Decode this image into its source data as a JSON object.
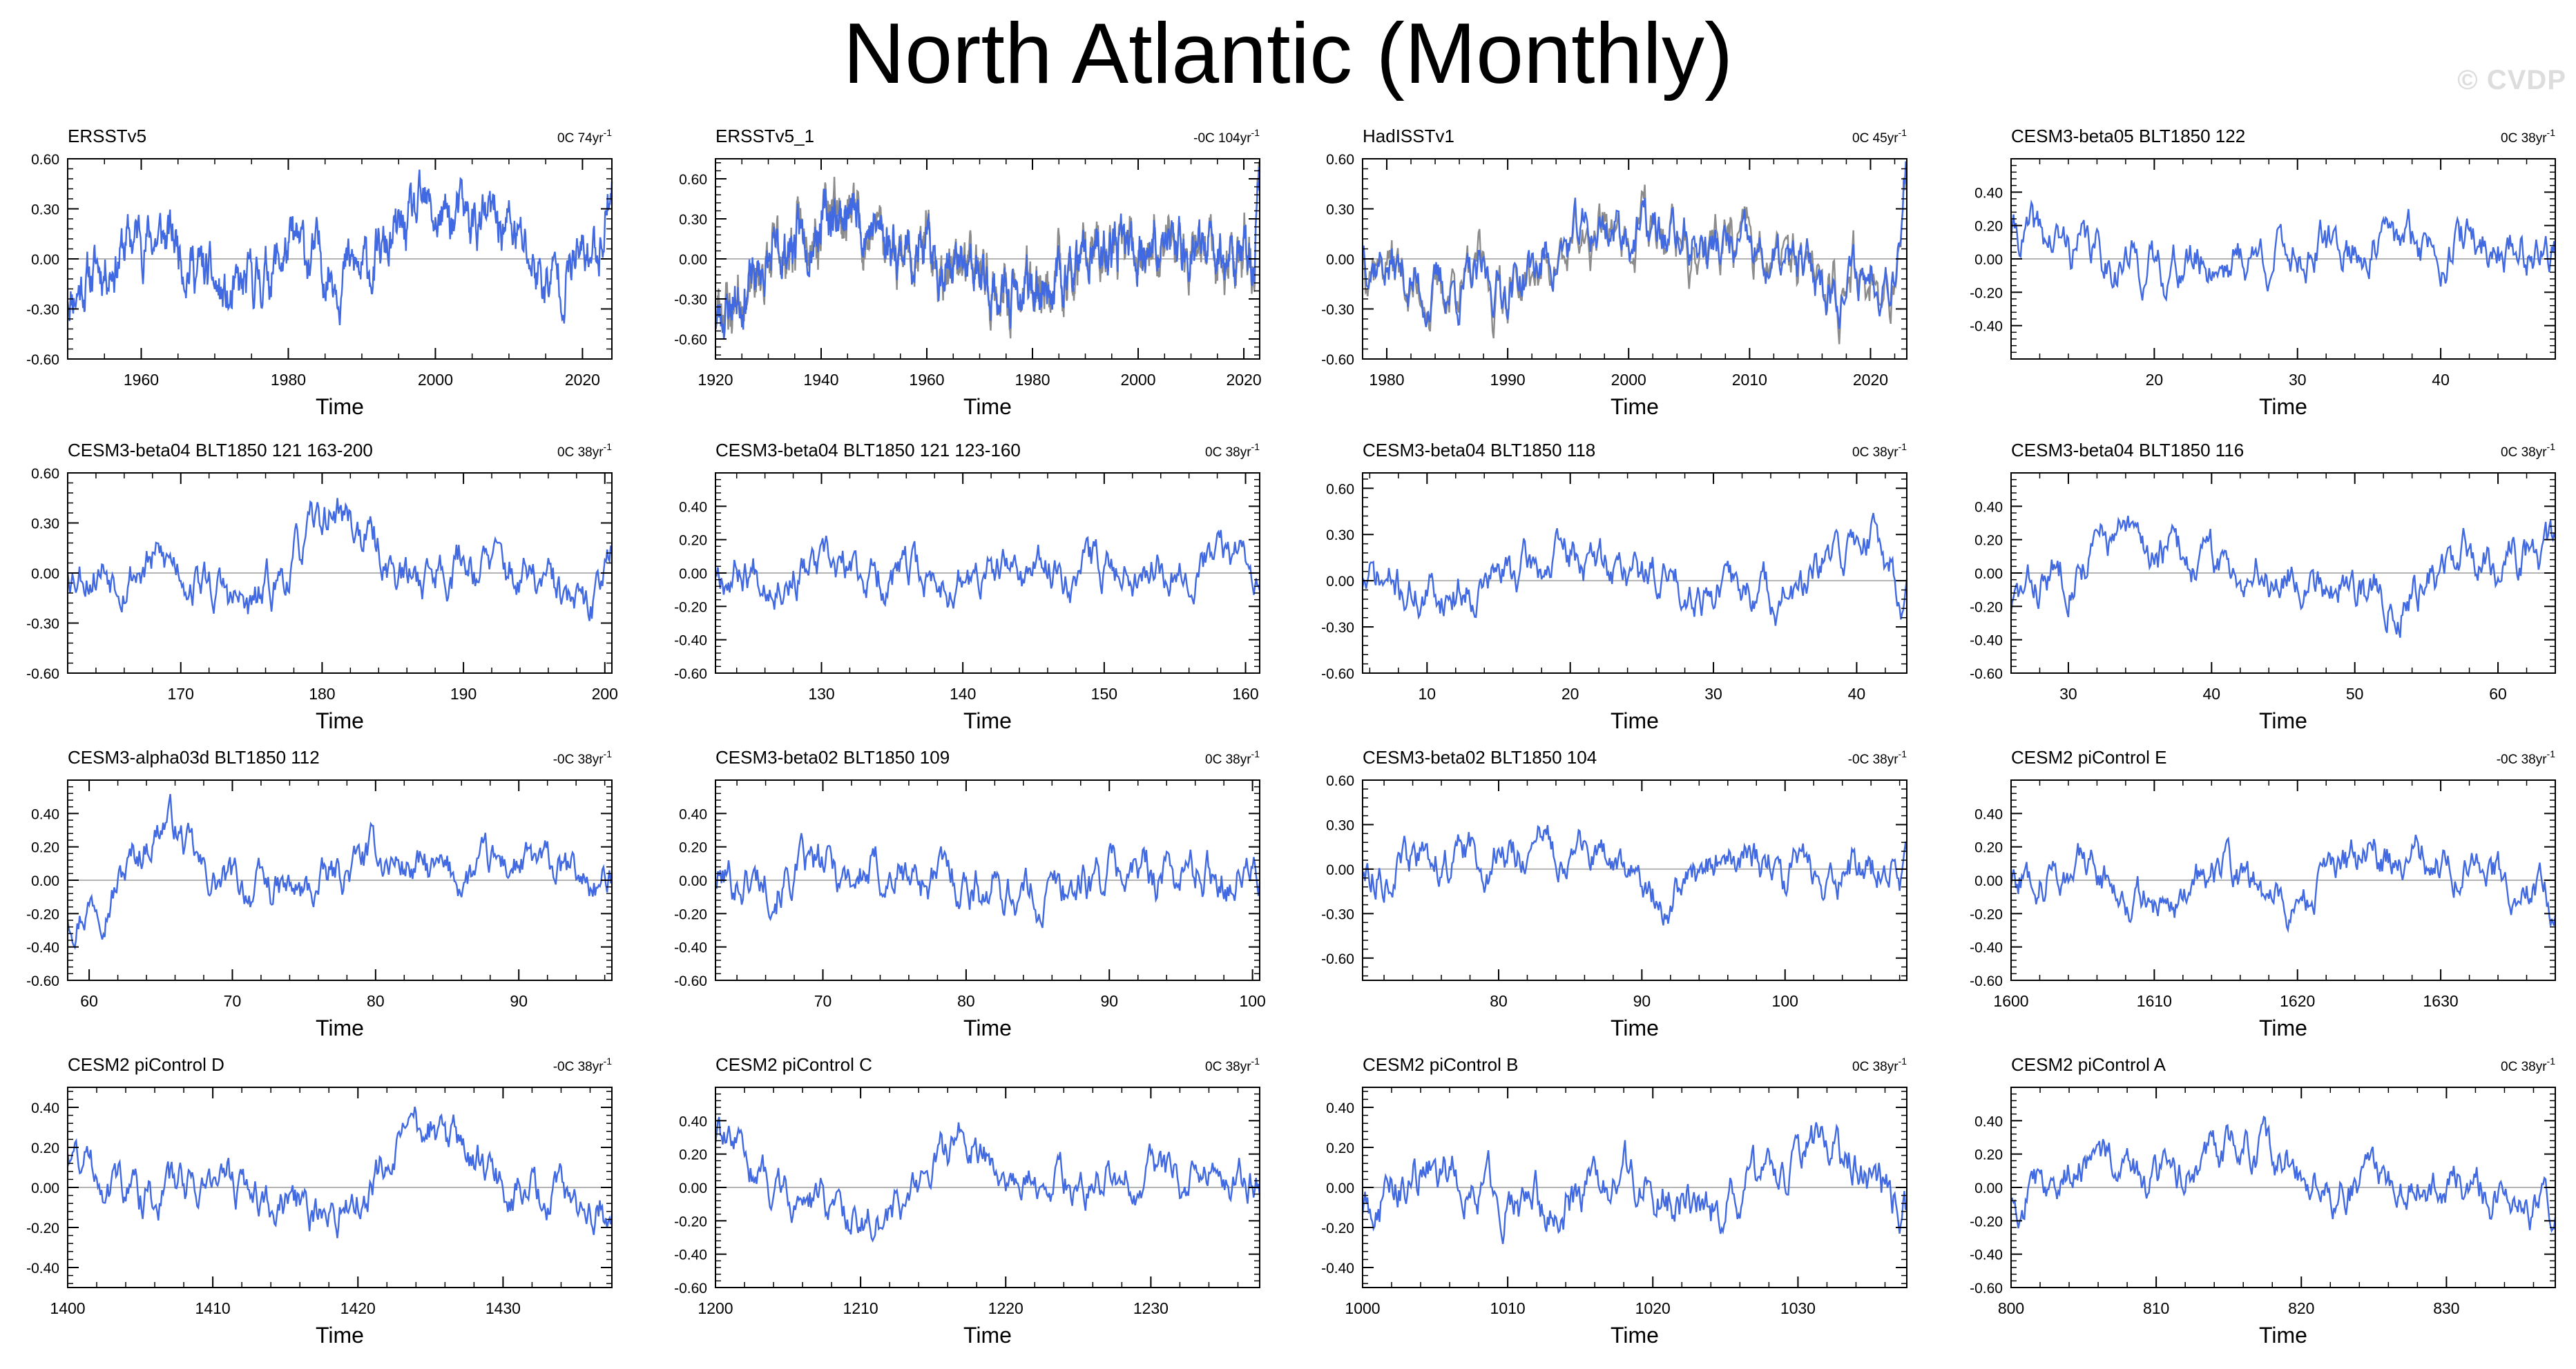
{
  "figure": {
    "title": "North Atlantic (Monthly)",
    "watermark": "© CVDP",
    "colors": {
      "line": "#4169e1",
      "obs_overlay": "#8c8c8c",
      "zero_line": "#b4b4b4"
    }
  },
  "chart_data": [
    {
      "type": "line",
      "title": "ERSSTv5",
      "trend": "0C 74yr",
      "trend_unit_exp": "-1",
      "xlabel": "Time",
      "ylabel": "",
      "xlim": [
        1950,
        2024
      ],
      "xticks": [
        1960,
        1980,
        2000,
        2020
      ],
      "ylim": [
        -0.6,
        0.6
      ],
      "yticks": [
        -0.6,
        -0.3,
        0.0,
        0.3,
        0.6
      ],
      "ytick_labels": [
        "-0.60",
        "-0.30",
        "0.00",
        "0.30",
        "0.60"
      ],
      "overlay": false,
      "seed": 11,
      "amp": 0.16,
      "key_points": [
        [
          1950,
          -0.2
        ],
        [
          1960,
          0.15
        ],
        [
          1965,
          0.1
        ],
        [
          1972,
          -0.3
        ],
        [
          1980,
          0.05
        ],
        [
          1990,
          -0.1
        ],
        [
          1998,
          0.25
        ],
        [
          2010,
          0.2
        ],
        [
          2015,
          -0.15
        ],
        [
          2022,
          0.05
        ],
        [
          2024,
          0.5
        ]
      ]
    },
    {
      "type": "line",
      "title": "ERSSTv5_1",
      "trend": "-0C 104yr",
      "trend_unit_exp": "-1",
      "xlabel": "Time",
      "ylabel": "",
      "xlim": [
        1920,
        2023
      ],
      "xticks": [
        1920,
        1940,
        1960,
        1980,
        2000,
        2020
      ],
      "ylim": [
        -0.75,
        0.75
      ],
      "yticks": [
        -0.6,
        -0.3,
        0.0,
        0.3,
        0.6
      ],
      "ytick_labels": [
        "-0.60",
        "-0.30",
        "0.00",
        "0.30",
        "0.60"
      ],
      "overlay": true,
      "seed": 23,
      "amp": 0.17,
      "key_points": [
        [
          1920,
          -0.45
        ],
        [
          1930,
          -0.05
        ],
        [
          1940,
          0.3
        ],
        [
          1945,
          0.35
        ],
        [
          1955,
          0.1
        ],
        [
          1965,
          -0.05
        ],
        [
          1975,
          -0.3
        ],
        [
          1985,
          -0.15
        ],
        [
          1995,
          0.05
        ],
        [
          2005,
          0.1
        ],
        [
          2015,
          0.05
        ],
        [
          2022,
          0.0
        ],
        [
          2023,
          0.75
        ]
      ]
    },
    {
      "type": "line",
      "title": "HadISSTv1",
      "trend": "0C 45yr",
      "trend_unit_exp": "-1",
      "xlabel": "Time",
      "ylabel": "",
      "xlim": [
        1978,
        2023
      ],
      "xticks": [
        1980,
        1990,
        2000,
        2010,
        2020
      ],
      "ylim": [
        -0.6,
        0.6
      ],
      "yticks": [
        -0.6,
        -0.3,
        0.0,
        0.3,
        0.6
      ],
      "ytick_labels": [
        "-0.60",
        "-0.30",
        "0.00",
        "0.30",
        "0.60"
      ],
      "overlay": true,
      "seed": 37,
      "amp": 0.16,
      "key_points": [
        [
          1978,
          0.1
        ],
        [
          1983,
          -0.2
        ],
        [
          1990,
          -0.15
        ],
        [
          1998,
          0.2
        ],
        [
          2005,
          0.1
        ],
        [
          2012,
          -0.05
        ],
        [
          2018,
          -0.15
        ],
        [
          2022,
          0.0
        ],
        [
          2023,
          0.7
        ]
      ]
    },
    {
      "type": "line",
      "title": "CESM3-beta05 BLT1850 122",
      "trend": "0C 38yr",
      "trend_unit_exp": "-1",
      "xlabel": "Time",
      "ylabel": "",
      "xlim": [
        10,
        48
      ],
      "xticks": [
        20,
        30,
        40
      ],
      "ylim": [
        -0.6,
        0.6
      ],
      "yticks": [
        -0.4,
        -0.2,
        0.0,
        0.2,
        0.4
      ],
      "ytick_labels": [
        "-0.40",
        "-0.20",
        "0.00",
        "0.20",
        "0.40"
      ],
      "overlay": false,
      "seed": 41,
      "amp": 0.14,
      "key_points": [
        [
          10,
          0.15
        ],
        [
          20,
          -0.05
        ],
        [
          30,
          0.05
        ],
        [
          40,
          0.1
        ],
        [
          48,
          0.05
        ]
      ]
    },
    {
      "type": "line",
      "title": "CESM3-beta04 BLT1850 121 163-200",
      "trend": "0C 38yr",
      "trend_unit_exp": "-1",
      "xlabel": "Time",
      "ylabel": "",
      "xlim": [
        162,
        200.5
      ],
      "xticks": [
        170,
        180,
        190,
        200
      ],
      "ylim": [
        -0.6,
        0.6
      ],
      "yticks": [
        -0.6,
        -0.3,
        0.0,
        0.3,
        0.6
      ],
      "ytick_labels": [
        "-0.60",
        "-0.30",
        "0.00",
        "0.30",
        "0.60"
      ],
      "overlay": false,
      "seed": 53,
      "amp": 0.14,
      "key_points": [
        [
          162,
          0.05
        ],
        [
          170,
          0.05
        ],
        [
          175,
          -0.25
        ],
        [
          181,
          0.4
        ],
        [
          186,
          -0.05
        ],
        [
          190,
          0.1
        ],
        [
          196,
          -0.1
        ],
        [
          199,
          -0.3
        ],
        [
          200.5,
          0.3
        ]
      ]
    },
    {
      "type": "line",
      "title": "CESM3-beta04 BLT1850 121 123-160",
      "trend": "0C 38yr",
      "trend_unit_exp": "-1",
      "xlabel": "Time",
      "ylabel": "",
      "xlim": [
        122.5,
        161
      ],
      "xticks": [
        130,
        140,
        150,
        160
      ],
      "ylim": [
        -0.6,
        0.6
      ],
      "yticks": [
        -0.6,
        -0.4,
        -0.2,
        0.0,
        0.2,
        0.4
      ],
      "ytick_labels": [
        "-0.60",
        "-0.40",
        "-0.20",
        "0.00",
        "0.20",
        "0.40"
      ],
      "overlay": false,
      "seed": 67,
      "amp": 0.13,
      "key_points": [
        [
          122.5,
          0.05
        ],
        [
          130,
          0.0
        ],
        [
          140,
          -0.05
        ],
        [
          150,
          0.05
        ],
        [
          161,
          0.1
        ]
      ]
    },
    {
      "type": "line",
      "title": "CESM3-beta04 BLT1850 118",
      "trend": "0C 38yr",
      "trend_unit_exp": "-1",
      "xlabel": "Time",
      "ylabel": "",
      "xlim": [
        5.5,
        43.5
      ],
      "xticks": [
        10,
        20,
        30,
        40
      ],
      "ylim": [
        -0.6,
        0.7
      ],
      "yticks": [
        -0.6,
        -0.3,
        0.0,
        0.3,
        0.6
      ],
      "ytick_labels": [
        "-0.60",
        "-0.30",
        "0.00",
        "0.30",
        "0.60"
      ],
      "overlay": false,
      "seed": 71,
      "amp": 0.14,
      "key_points": [
        [
          5.5,
          0.0
        ],
        [
          10,
          -0.1
        ],
        [
          20,
          0.15
        ],
        [
          30,
          -0.05
        ],
        [
          36,
          -0.1
        ],
        [
          41,
          0.35
        ],
        [
          43.5,
          -0.1
        ]
      ]
    },
    {
      "type": "line",
      "title": "CESM3-beta04 BLT1850 116",
      "trend": "0C 38yr",
      "trend_unit_exp": "-1",
      "xlabel": "Time",
      "ylabel": "",
      "xlim": [
        26,
        64
      ],
      "xticks": [
        30,
        40,
        50,
        60
      ],
      "ylim": [
        -0.6,
        0.6
      ],
      "yticks": [
        -0.6,
        -0.4,
        -0.2,
        0.0,
        0.2,
        0.4
      ],
      "ytick_labels": [
        "-0.60",
        "-0.40",
        "-0.20",
        "0.00",
        "0.20",
        "0.40"
      ],
      "overlay": false,
      "seed": 83,
      "amp": 0.13,
      "key_points": [
        [
          26,
          -0.2
        ],
        [
          30,
          0.05
        ],
        [
          33,
          0.2
        ],
        [
          40,
          0.05
        ],
        [
          47,
          0.0
        ],
        [
          53,
          -0.15
        ],
        [
          58,
          0.1
        ],
        [
          64,
          0.1
        ]
      ]
    },
    {
      "type": "line",
      "title": "CESM3-alpha03d BLT1850 112",
      "trend": "-0C 38yr",
      "trend_unit_exp": "-1",
      "xlabel": "Time",
      "ylabel": "",
      "xlim": [
        58.5,
        96.5
      ],
      "xticks": [
        60,
        70,
        80,
        90
      ],
      "ylim": [
        -0.6,
        0.6
      ],
      "yticks": [
        -0.6,
        -0.4,
        -0.2,
        0.0,
        0.2,
        0.4
      ],
      "ytick_labels": [
        "-0.60",
        "-0.40",
        "-0.20",
        "0.00",
        "0.20",
        "0.40"
      ],
      "overlay": false,
      "seed": 97,
      "amp": 0.12,
      "key_points": [
        [
          58.5,
          -0.2
        ],
        [
          62,
          0.0
        ],
        [
          65.5,
          0.4
        ],
        [
          68,
          0.0
        ],
        [
          75,
          -0.1
        ],
        [
          80,
          0.15
        ],
        [
          85,
          0.0
        ],
        [
          90,
          0.1
        ],
        [
          96.5,
          -0.05
        ]
      ]
    },
    {
      "type": "line",
      "title": "CESM3-beta02 BLT1850 109",
      "trend": "0C 38yr",
      "trend_unit_exp": "-1",
      "xlabel": "Time",
      "ylabel": "",
      "xlim": [
        62.5,
        100.5
      ],
      "xticks": [
        70,
        80,
        90,
        100
      ],
      "ylim": [
        -0.6,
        0.6
      ],
      "yticks": [
        -0.6,
        -0.4,
        -0.2,
        0.0,
        0.2,
        0.4
      ],
      "ytick_labels": [
        "-0.60",
        "-0.40",
        "-0.20",
        "0.00",
        "0.20",
        "0.40"
      ],
      "overlay": false,
      "seed": 101,
      "amp": 0.14,
      "key_points": [
        [
          62.5,
          0.0
        ],
        [
          70,
          0.05
        ],
        [
          80,
          0.0
        ],
        [
          85,
          -0.1
        ],
        [
          90,
          0.05
        ],
        [
          100.5,
          0.05
        ]
      ]
    },
    {
      "type": "line",
      "title": "CESM3-beta02 BLT1850 104",
      "trend": "-0C 38yr",
      "trend_unit_exp": "-1",
      "xlabel": "Time",
      "ylabel": "",
      "xlim": [
        70.5,
        108.5
      ],
      "xticks": [
        80,
        90,
        100
      ],
      "ylim": [
        -0.75,
        0.6
      ],
      "yticks": [
        -0.6,
        -0.3,
        0.0,
        0.3,
        0.6
      ],
      "ytick_labels": [
        "-0.60",
        "-0.30",
        "0.00",
        "0.30",
        "0.60"
      ],
      "overlay": false,
      "seed": 113,
      "amp": 0.14,
      "key_points": [
        [
          70.5,
          0.0
        ],
        [
          80,
          0.1
        ],
        [
          85,
          0.15
        ],
        [
          92,
          -0.2
        ],
        [
          96,
          0.1
        ],
        [
          100,
          -0.05
        ],
        [
          108.5,
          0.0
        ]
      ]
    },
    {
      "type": "line",
      "title": "CESM2 piControl E",
      "trend": "-0C 38yr",
      "trend_unit_exp": "-1",
      "xlabel": "Time",
      "ylabel": "",
      "xlim": [
        1600,
        1638
      ],
      "xticks": [
        1600,
        1610,
        1620,
        1630
      ],
      "ylim": [
        -0.6,
        0.6
      ],
      "yticks": [
        -0.6,
        -0.4,
        -0.2,
        0.0,
        0.2,
        0.4
      ],
      "ytick_labels": [
        "-0.60",
        "-0.40",
        "-0.20",
        "0.00",
        "0.20",
        "0.40"
      ],
      "overlay": false,
      "seed": 127,
      "amp": 0.12,
      "key_points": [
        [
          1600,
          0.0
        ],
        [
          1605,
          0.1
        ],
        [
          1610,
          -0.15
        ],
        [
          1615,
          0.05
        ],
        [
          1620,
          -0.15
        ],
        [
          1625,
          0.15
        ],
        [
          1632,
          0.1
        ],
        [
          1638,
          -0.15
        ]
      ]
    },
    {
      "type": "line",
      "title": "CESM2 piControl D",
      "trend": "-0C 38yr",
      "trend_unit_exp": "-1",
      "xlabel": "Time",
      "ylabel": "",
      "xlim": [
        1400,
        1437.5
      ],
      "xticks": [
        1400,
        1410,
        1420,
        1430
      ],
      "ylim": [
        -0.5,
        0.5
      ],
      "yticks": [
        -0.4,
        -0.2,
        0.0,
        0.2,
        0.4
      ],
      "ytick_labels": [
        "-0.40",
        "-0.20",
        "0.00",
        "0.20",
        "0.40"
      ],
      "overlay": false,
      "seed": 131,
      "amp": 0.11,
      "key_points": [
        [
          1400,
          0.2
        ],
        [
          1405,
          -0.05
        ],
        [
          1410,
          0.05
        ],
        [
          1418,
          -0.15
        ],
        [
          1425,
          0.3
        ],
        [
          1430,
          0.0
        ],
        [
          1437.5,
          -0.1
        ]
      ]
    },
    {
      "type": "line",
      "title": "CESM2 piControl C",
      "trend": "0C 38yr",
      "trend_unit_exp": "-1",
      "xlabel": "Time",
      "ylabel": "",
      "xlim": [
        1200,
        1237.5
      ],
      "xticks": [
        1200,
        1210,
        1220,
        1230
      ],
      "ylim": [
        -0.6,
        0.6
      ],
      "yticks": [
        -0.6,
        -0.4,
        -0.2,
        0.0,
        0.2,
        0.4
      ],
      "ytick_labels": [
        "-0.60",
        "-0.40",
        "-0.20",
        "0.00",
        "0.20",
        "0.40"
      ],
      "overlay": false,
      "seed": 139,
      "amp": 0.12,
      "key_points": [
        [
          1200,
          0.3
        ],
        [
          1205,
          -0.05
        ],
        [
          1212,
          -0.2
        ],
        [
          1217,
          0.3
        ],
        [
          1222,
          0.0
        ],
        [
          1230,
          0.05
        ],
        [
          1237.5,
          0.05
        ]
      ]
    },
    {
      "type": "line",
      "title": "CESM2 piControl B",
      "trend": "0C 38yr",
      "trend_unit_exp": "-1",
      "xlabel": "Time",
      "ylabel": "",
      "xlim": [
        1000,
        1037.5
      ],
      "xticks": [
        1000,
        1010,
        1020,
        1030
      ],
      "ylim": [
        -0.5,
        0.5
      ],
      "yticks": [
        -0.4,
        -0.2,
        0.0,
        0.2,
        0.4
      ],
      "ytick_labels": [
        "-0.40",
        "-0.20",
        "0.00",
        "0.20",
        "0.40"
      ],
      "overlay": false,
      "seed": 149,
      "amp": 0.12,
      "key_points": [
        [
          1000,
          -0.1
        ],
        [
          1005,
          0.1
        ],
        [
          1012,
          -0.1
        ],
        [
          1018,
          0.05
        ],
        [
          1025,
          -0.1
        ],
        [
          1032,
          0.2
        ],
        [
          1037.5,
          -0.1
        ]
      ]
    },
    {
      "type": "line",
      "title": "CESM2 piControl A",
      "trend": "0C 38yr",
      "trend_unit_exp": "-1",
      "xlabel": "Time",
      "ylabel": "",
      "xlim": [
        800,
        837.5
      ],
      "xticks": [
        800,
        810,
        820,
        830
      ],
      "ylim": [
        -0.6,
        0.6
      ],
      "yticks": [
        -0.6,
        -0.4,
        -0.2,
        0.0,
        0.2,
        0.4
      ],
      "ytick_labels": [
        "-0.60",
        "-0.40",
        "-0.20",
        "0.00",
        "0.20",
        "0.40"
      ],
      "overlay": false,
      "seed": 157,
      "amp": 0.12,
      "key_points": [
        [
          800,
          -0.05
        ],
        [
          805,
          0.2
        ],
        [
          810,
          0.0
        ],
        [
          816,
          0.3
        ],
        [
          822,
          0.0
        ],
        [
          830,
          0.05
        ],
        [
          837.5,
          -0.15
        ]
      ]
    }
  ]
}
